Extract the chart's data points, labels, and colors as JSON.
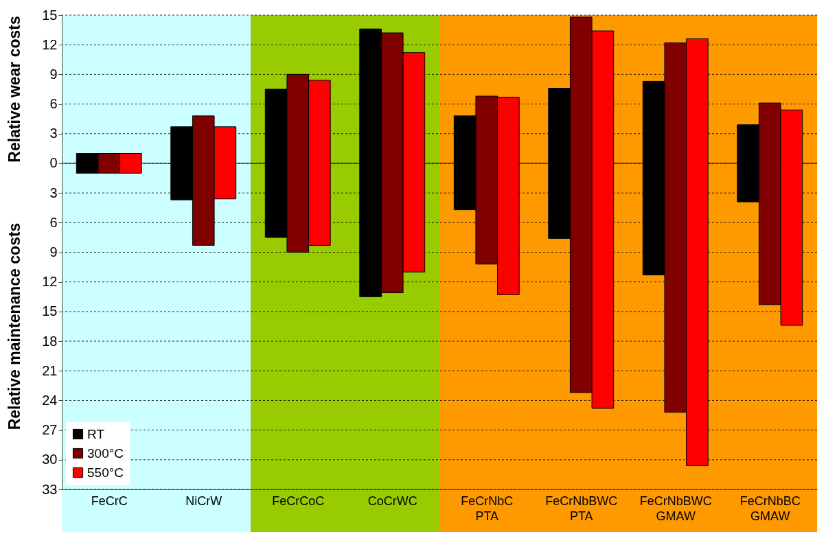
{
  "chart_data": {
    "type": "bar",
    "ylabel": "Relative wear costs",
    "annotations": [
      "Relative maintenance costs"
    ],
    "categories": [
      "FeCrC",
      "NiCrW",
      "FeCrCoC",
      "CoCrWC",
      "FeCrNbC PTA",
      "FeCrNbBWC PTA",
      "FeCrNbBWC GMAW",
      "FeCrNbBC GMAW"
    ],
    "series": [
      {
        "name": "RT",
        "color": "#000000",
        "base": [
          -1,
          -3.7,
          -7.5,
          -13.5,
          -4.7,
          -7.6,
          -11.3,
          -3.9
        ],
        "values": [
          2,
          7.4,
          15,
          27.1,
          9.5,
          15.2,
          19.6,
          7.8
        ]
      },
      {
        "name": "300°C",
        "color": "#800000",
        "base": [
          -1,
          -8.3,
          -9,
          -13.1,
          -10.2,
          -23.2,
          -25.2,
          -14.3
        ],
        "values": [
          2,
          13.1,
          18,
          26.3,
          17,
          38,
          37.4,
          20.4
        ]
      },
      {
        "name": "550°C",
        "color": "#ff0000",
        "base": [
          -1,
          -3.6,
          -8.3,
          -11,
          -13.3,
          -24.8,
          -30.6,
          -16.4
        ],
        "values": [
          2,
          7.3,
          16.7,
          22.2,
          20,
          38.2,
          43.2,
          21.8
        ]
      }
    ],
    "ylim": [
      -33,
      15
    ],
    "yticks": [
      {
        "value": -33,
        "label": "33"
      },
      {
        "value": -30,
        "label": "30"
      },
      {
        "value": -27,
        "label": "27"
      },
      {
        "value": -24,
        "label": "24"
      },
      {
        "value": -21,
        "label": "21"
      },
      {
        "value": -18,
        "label": "18"
      },
      {
        "value": -15,
        "label": "15"
      },
      {
        "value": -12,
        "label": "12"
      },
      {
        "value": -9,
        "label": "9"
      },
      {
        "value": -6,
        "label": "6"
      },
      {
        "value": -3,
        "label": "3"
      },
      0,
      3,
      6,
      9,
      12,
      15
    ],
    "grid": "y",
    "ref_lines": [
      {
        "axis": "y",
        "value": 0,
        "color": "#000000",
        "line_style": "solid"
      }
    ],
    "bands": [
      {
        "axis": "x",
        "from": "FeCrC",
        "to": "NiCrW",
        "color": "#ccffff"
      },
      {
        "axis": "x",
        "from": "FeCrCoC",
        "to": "CoCrWC",
        "color": "#99cc00"
      },
      {
        "axis": "x",
        "from": "FeCrNbC PTA",
        "to": "FeCrNbBC GMAW",
        "color": "#ff9900"
      }
    ],
    "legend": "bottom left"
  }
}
